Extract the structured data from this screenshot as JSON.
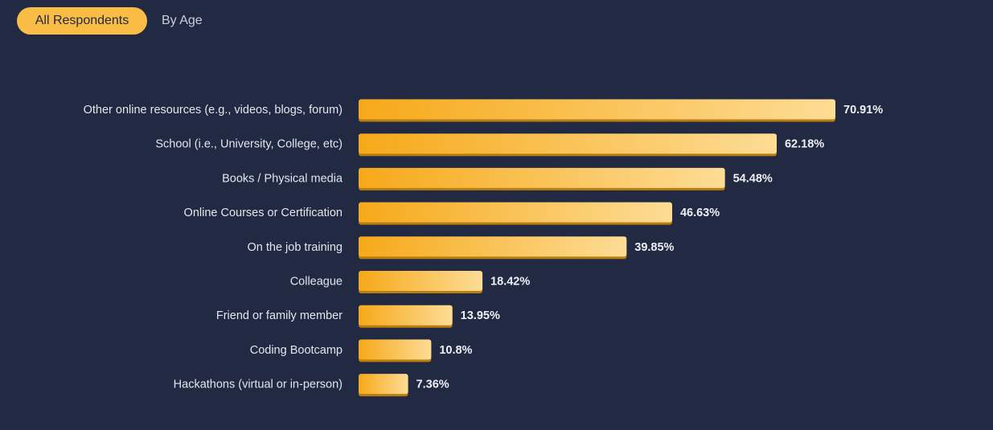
{
  "tabs": [
    {
      "label": "All Respondents",
      "active": true
    },
    {
      "label": "By Age",
      "active": false
    }
  ],
  "colors": {
    "background": "#212a42",
    "bar_start": "#f6a91a",
    "bar_end": "#fddc95",
    "bar_shadow": "#b97d10",
    "tab_active": "#f9bd46"
  },
  "chart_data": {
    "type": "bar",
    "orientation": "horizontal",
    "categories": [
      "Other online resources (e.g., videos, blogs, forum)",
      "School (i.e., University, College, etc)",
      "Books / Physical media",
      "Online Courses or Certification",
      "On the job training",
      "Colleague",
      "Friend or family member",
      "Coding Bootcamp",
      "Hackathons (virtual or in-person)"
    ],
    "values": [
      70.91,
      62.18,
      54.48,
      46.63,
      39.85,
      18.42,
      13.95,
      10.8,
      7.36
    ],
    "value_labels": [
      "70.91%",
      "62.18%",
      "54.48%",
      "46.63%",
      "39.85%",
      "18.42%",
      "13.95%",
      "10.8%",
      "7.36%"
    ],
    "xlim": [
      0,
      100
    ],
    "grid": false,
    "legend": "none"
  }
}
